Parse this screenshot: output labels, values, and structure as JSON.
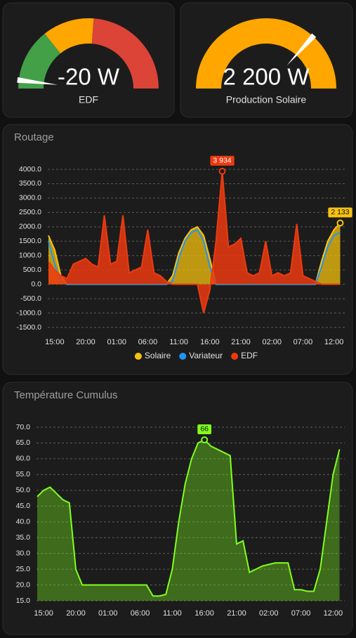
{
  "chart_data": [
    {
      "type": "gauge",
      "title": "EDF",
      "value": -20,
      "value_label": "-20 W",
      "ylim": [
        -100,
        2000
      ],
      "segments": [
        {
          "from": -100,
          "color": "#43a047"
        },
        {
          "from": 500,
          "color": "#ffa600"
        },
        {
          "from": 1000,
          "color": "#db4437"
        }
      ]
    },
    {
      "type": "gauge",
      "title": "Production Solaire",
      "value": 2200,
      "value_label": "2 200 W",
      "ylim": [
        0,
        3000
      ],
      "segments": [
        {
          "from": 0,
          "color": "#ffa600"
        }
      ]
    },
    {
      "type": "area",
      "title": "Routage",
      "categories": [
        null,
        "15:00",
        null,
        null,
        null,
        null,
        "20:00",
        null,
        null,
        null,
        null,
        "01:00",
        null,
        null,
        null,
        null,
        "06:00",
        null,
        null,
        null,
        null,
        "11:00",
        null,
        null,
        null,
        null,
        "16:00",
        null,
        null,
        null,
        null,
        "21:00",
        null,
        null,
        null,
        null,
        "02:00",
        null,
        null,
        null,
        null,
        "07:00",
        null,
        null,
        null,
        null,
        "12:00",
        null
      ],
      "ylim": [
        -1500,
        4000
      ],
      "yticks": [
        {
          "value": 4000,
          "label": "4000.0"
        },
        {
          "value": 3500,
          "label": "3500.0"
        },
        {
          "value": 3000,
          "label": "3000.0"
        },
        {
          "value": 2500,
          "label": "2500.0"
        },
        {
          "value": 2000,
          "label": "2000.0"
        },
        {
          "value": 1500,
          "label": "1500.0"
        },
        {
          "value": 1000,
          "label": "1000.0"
        },
        {
          "value": 500,
          "label": "500.0"
        },
        {
          "value": 0,
          "label": "0.0"
        },
        {
          "value": -500,
          "label": "-500.0"
        },
        {
          "value": -1000,
          "label": "-1000.0"
        },
        {
          "value": -1500,
          "label": "-1500.0"
        }
      ],
      "grid": true,
      "legend": "bottom",
      "series": [
        {
          "name": "Solaire",
          "color": "#f6c20f",
          "values": [
            1700,
            1200,
            300,
            0,
            0,
            0,
            0,
            0,
            0,
            0,
            0,
            0,
            0,
            0,
            0,
            0,
            0,
            0,
            0,
            0,
            300,
            1100,
            1600,
            1900,
            2000,
            1700,
            900,
            0,
            0,
            0,
            0,
            0,
            0,
            0,
            0,
            0,
            0,
            0,
            0,
            0,
            0,
            0,
            0,
            0,
            800,
            1500,
            1900,
            2133
          ],
          "value_labels": [
            null,
            null,
            null,
            null,
            null,
            null,
            null,
            null,
            null,
            null,
            null,
            null,
            null,
            null,
            null,
            null,
            null,
            null,
            null,
            null,
            null,
            null,
            null,
            null,
            null,
            null,
            null,
            null,
            null,
            null,
            null,
            null,
            null,
            null,
            null,
            null,
            null,
            null,
            null,
            null,
            null,
            null,
            null,
            null,
            null,
            null,
            null,
            "2 133"
          ]
        },
        {
          "name": "Variateur",
          "color": "#2196f3",
          "values": [
            1500,
            700,
            100,
            0,
            0,
            0,
            0,
            0,
            0,
            0,
            0,
            0,
            0,
            0,
            0,
            0,
            0,
            0,
            0,
            0,
            100,
            900,
            1500,
            1800,
            1900,
            1500,
            600,
            0,
            0,
            0,
            0,
            0,
            0,
            0,
            0,
            0,
            0,
            0,
            0,
            0,
            0,
            0,
            0,
            0,
            600,
            1300,
            1700,
            1800
          ]
        },
        {
          "name": "EDF",
          "color": "#ec3a10",
          "values": [
            800,
            500,
            300,
            200,
            700,
            800,
            900,
            700,
            600,
            2400,
            700,
            800,
            2400,
            400,
            500,
            600,
            1900,
            400,
            300,
            100,
            0,
            0,
            0,
            0,
            0,
            -1000,
            -200,
            1500,
            3934,
            1300,
            1400,
            1600,
            400,
            300,
            400,
            1500,
            300,
            400,
            300,
            400,
            2100,
            300,
            200,
            100,
            0,
            0,
            0,
            0
          ],
          "value_labels": [
            null,
            null,
            null,
            null,
            null,
            null,
            null,
            null,
            null,
            null,
            null,
            null,
            null,
            null,
            null,
            null,
            null,
            null,
            null,
            null,
            null,
            null,
            null,
            null,
            null,
            null,
            null,
            null,
            "3 934",
            null,
            null,
            null,
            null,
            null,
            null,
            null,
            null,
            null,
            null,
            null,
            null,
            null,
            null,
            null,
            null,
            null,
            null,
            null
          ]
        }
      ]
    },
    {
      "type": "area",
      "title": "Température Cumulus",
      "categories": [
        null,
        "15:00",
        null,
        null,
        null,
        null,
        "20:00",
        null,
        null,
        null,
        null,
        "01:00",
        null,
        null,
        null,
        null,
        "06:00",
        null,
        null,
        null,
        null,
        "11:00",
        null,
        null,
        null,
        null,
        "16:00",
        null,
        null,
        null,
        null,
        "21:00",
        null,
        null,
        null,
        null,
        "02:00",
        null,
        null,
        null,
        null,
        "07:00",
        null,
        null,
        null,
        null,
        "12:00",
        null
      ],
      "ylim": [
        15,
        70
      ],
      "yticks": [
        {
          "value": 70,
          "label": "70.0"
        },
        {
          "value": 65,
          "label": "65.0"
        },
        {
          "value": 60,
          "label": "60.0"
        },
        {
          "value": 55,
          "label": "55.0"
        },
        {
          "value": 50,
          "label": "50.0"
        },
        {
          "value": 45,
          "label": "45.0"
        },
        {
          "value": 40,
          "label": "40.0"
        },
        {
          "value": 35,
          "label": "35.0"
        },
        {
          "value": 30,
          "label": "30.0"
        },
        {
          "value": 25,
          "label": "25.0"
        },
        {
          "value": 20,
          "label": "20.0"
        },
        {
          "value": 15,
          "label": "15.0"
        }
      ],
      "grid": true,
      "series": [
        {
          "color": "#7fff1e",
          "values": [
            48,
            50,
            51,
            49,
            47,
            46,
            25,
            20,
            20,
            20,
            20,
            20,
            20,
            20,
            20,
            20,
            20,
            20,
            16.5,
            16.5,
            17,
            25,
            40,
            52,
            60,
            65,
            66,
            64,
            63,
            62,
            61,
            33,
            34,
            24,
            25,
            26,
            26.5,
            27,
            27,
            27,
            18.5,
            18.5,
            18,
            18,
            25,
            40,
            55,
            63
          ]
        }
      ]
    }
  ]
}
